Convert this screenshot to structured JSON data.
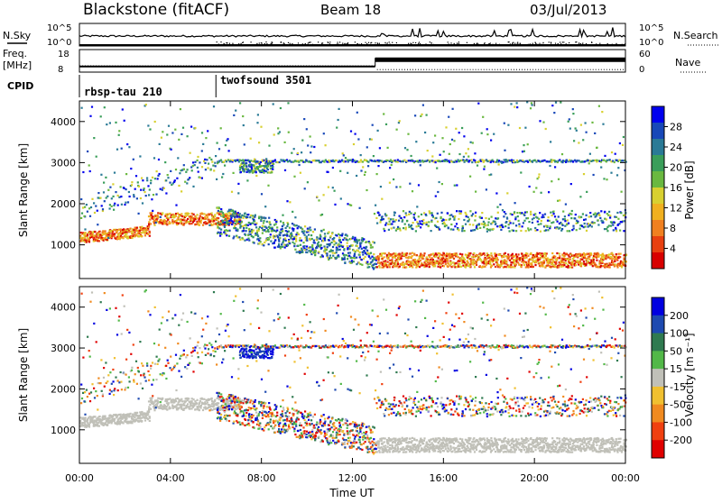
{
  "header": {
    "station": "Blackstone (fitACF)",
    "beam": "Beam 18",
    "date": "03/Jul/2013"
  },
  "aux_panels": {
    "nsky_label": "N.Sky",
    "nsearch_label": "N.Search",
    "nsky_ticks": [
      "10^5",
      "10^0"
    ],
    "freq_label_1": "Freq.",
    "freq_label_2": "[MHz]",
    "freq_ticks": [
      "18",
      "8"
    ],
    "nave_label": "Nave",
    "nave_ticks": [
      "60",
      "0"
    ],
    "cpid_label": "CPID",
    "cpid_programs": [
      {
        "name": "rbsp-tau 210",
        "start_hour": 0,
        "end_hour": 6
      },
      {
        "name": "twofsound 3501",
        "start_hour": 6,
        "end_hour": 24
      }
    ],
    "freq_series": {
      "before_hour": 13,
      "before_mhz": 10.5,
      "after_mhz": 13.5
    },
    "nave_series": {
      "before_hour": 13,
      "before": 18,
      "after": 48
    }
  },
  "chart_data": [
    {
      "type": "heatmap",
      "name": "Power",
      "ylabel": "Slant Range [km]",
      "ylim": [
        180,
        4500
      ],
      "yticks": [
        "1000",
        "2000",
        "3000",
        "4000"
      ],
      "xlim_hours": [
        0,
        24
      ],
      "colorbar_label": "Power [dB]",
      "colorbar_ticks": [
        "28",
        "24",
        "20",
        "16",
        "12",
        "8",
        "4"
      ],
      "colorscale": [
        "#0000ee",
        "#1848b8",
        "#2a7a96",
        "#3a9e5a",
        "#6ab840",
        "#d8d030",
        "#f0b020",
        "#f08020",
        "#e84010",
        "#d80000"
      ]
    },
    {
      "type": "heatmap",
      "name": "Velocity",
      "ylabel": "Slant Range [km]",
      "ylim": [
        180,
        4500
      ],
      "yticks": [
        "1000",
        "2000",
        "3000",
        "4000"
      ],
      "xlim_hours": [
        0,
        24
      ],
      "xlabel": "Time UT",
      "xticks": [
        "00:00",
        "04:00",
        "08:00",
        "12:00",
        "16:00",
        "20:00",
        "00:00"
      ],
      "colorbar_label": "Velocity [m s⁻¹]",
      "colorbar_ticks": [
        "200",
        "100",
        "50",
        "15",
        "-15",
        "-50",
        "-100",
        "-200"
      ],
      "colorscale": [
        "#0000e0",
        "#1e4ab0",
        "#2f7a50",
        "#52b848",
        "#c0c0b8",
        "#f0c030",
        "#f08a20",
        "#f04010",
        "#e00000"
      ]
    }
  ]
}
